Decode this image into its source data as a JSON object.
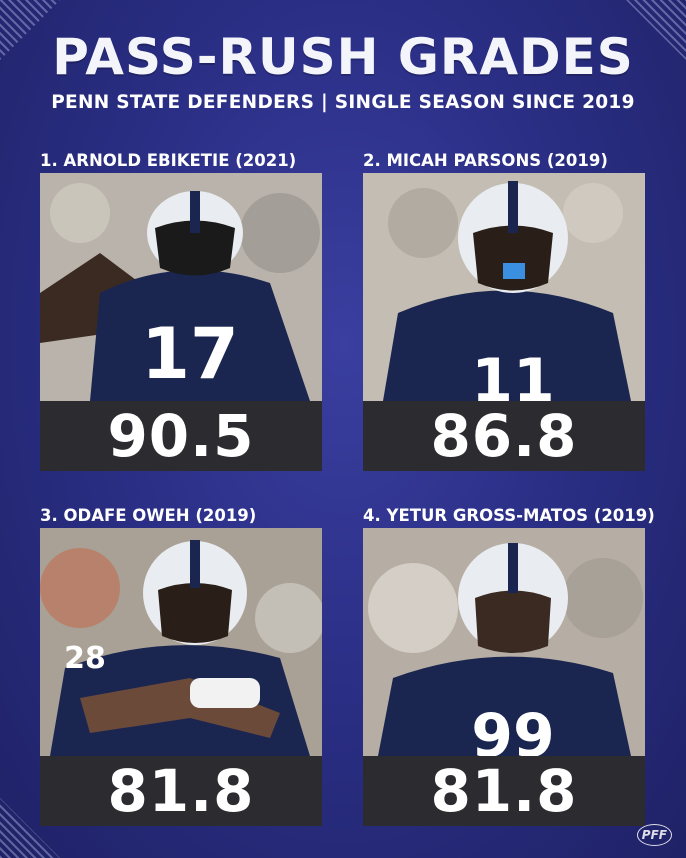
{
  "header": {
    "title": "PASS-RUSH GRADES",
    "subtitle": "PENN STATE DEFENDERS | SINGLE SEASON SINCE 2019"
  },
  "cards": [
    {
      "label": "1. ARNOLD EBIKETIE (2021)",
      "score": "90.5",
      "jersey": "17"
    },
    {
      "label": "2. MICAH PARSONS (2019)",
      "score": "86.8",
      "jersey": "11"
    },
    {
      "label": "3. ODAFE OWEH (2019)",
      "score": "81.8",
      "jersey": "28"
    },
    {
      "label": "4. YETUR GROSS-MATOS (2019)",
      "score": "81.8",
      "jersey": "99"
    }
  ],
  "logo": {
    "text": "PFF"
  },
  "colors": {
    "background": "#2b2f86",
    "score_box": "#2c2c30",
    "jersey": "#1b2650",
    "helmet": "#e9ecf0"
  }
}
